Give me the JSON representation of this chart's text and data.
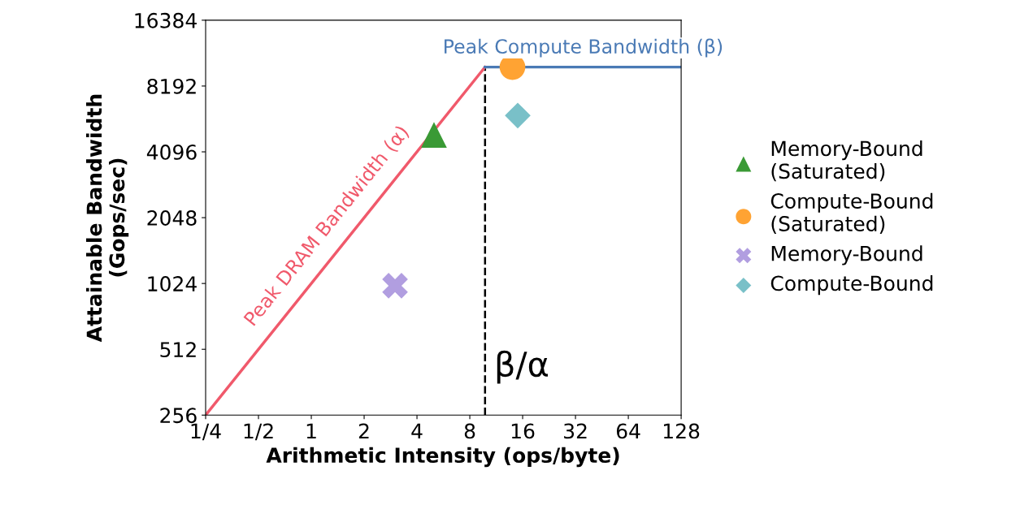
{
  "chart_data": {
    "type": "scatter",
    "xlabel": "Arithmetic Intensity (ops/byte)",
    "ylabel": "Attainable Bandwidth\n(Gops/sec)",
    "log": "xy",
    "legend": "right",
    "grid": false,
    "xlim": [
      0.25,
      128
    ],
    "xticks": [
      {
        "value": 0.25,
        "label": "1/4"
      },
      {
        "value": 0.5,
        "label": "1/2"
      },
      1,
      2,
      4,
      8,
      16,
      32,
      64,
      128
    ],
    "ylim": [
      256,
      16384
    ],
    "yticks": [
      256,
      512,
      1024,
      2048,
      4096,
      8192,
      16384
    ],
    "series": [
      {
        "name": "Peak DRAM Bandwidth (α)",
        "type": "line",
        "color": "#f0596b",
        "x": [
          0.25,
          9.77
        ],
        "values": [
          256,
          10000
        ],
        "line_style": "solid",
        "marker": "none"
      },
      {
        "name": "Peak Compute Bandwidth (β)",
        "type": "line",
        "color": "#4a7ab5",
        "x": [
          9.77,
          128
        ],
        "values": [
          10000,
          10000
        ],
        "line_style": "solid",
        "marker": "none"
      },
      {
        "name": "Memory-Bound\n(Saturated)",
        "color": "#3a9a35",
        "x": [
          5
        ],
        "values": [
          4900
        ],
        "marker": "triangle"
      },
      {
        "name": "Compute-Bound\n(Saturated)",
        "color": "#ffa333",
        "x": [
          14
        ],
        "values": [
          10000
        ],
        "marker": "circle"
      },
      {
        "name": "Memory-Bound",
        "color": "#b19ee0",
        "x": [
          3
        ],
        "values": [
          1000
        ],
        "marker": "cross"
      },
      {
        "name": "Compute-Bound",
        "color": "#79c0c8",
        "x": [
          15
        ],
        "values": [
          6000
        ],
        "marker": "diamond"
      }
    ],
    "ref_lines": [
      {
        "axis": "x",
        "value": 9.77,
        "label": "β/α",
        "color": "#000000",
        "line_style": "dashed"
      }
    ]
  }
}
